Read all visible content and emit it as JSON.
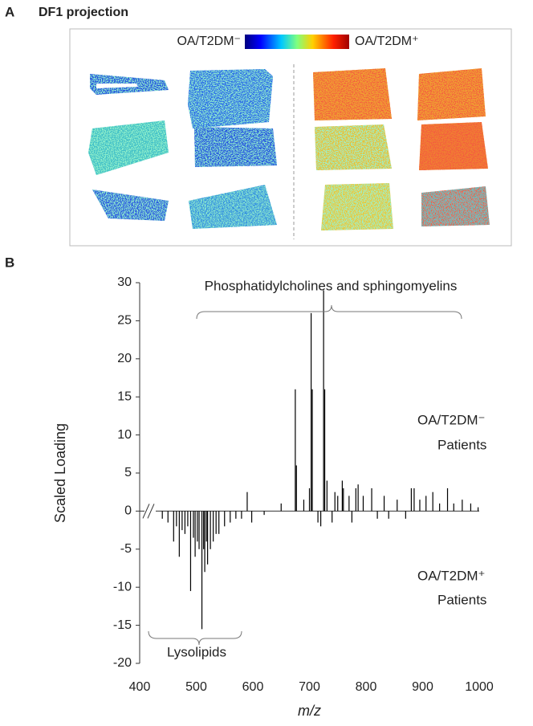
{
  "panel_a": {
    "label": "A",
    "title": "DF1 projection",
    "colorbar_low": "OA/T2DM⁻",
    "colorbar_high": "OA/T2DM⁺"
  },
  "chart_data": {
    "type": "spectrum",
    "panel_label": "B",
    "xlabel": "m/z",
    "ylabel": "Scaled Loading",
    "color": "#000000",
    "annotations": [
      "Phosphatidylcholines and sphingomyelins",
      "OA/T2DM⁻",
      "Patients",
      "OA/T2DM⁺",
      "Patients",
      "Lysolipids"
    ],
    "x": [
      440,
      450,
      460,
      465,
      470,
      475,
      480,
      485,
      490,
      495,
      498,
      502,
      505,
      510,
      513,
      515,
      518,
      520,
      525,
      530,
      535,
      540,
      550,
      560,
      570,
      580,
      590,
      598,
      620,
      650,
      675,
      677,
      690,
      700,
      703,
      705,
      715,
      720,
      725,
      727,
      731,
      740,
      745,
      750,
      758,
      760,
      770,
      775,
      782,
      786,
      795,
      810,
      820,
      832,
      840,
      855,
      870,
      880,
      885,
      895,
      906,
      918,
      930,
      944,
      955,
      970,
      985,
      998
    ],
    "values": [
      -1,
      -1.5,
      -4,
      -2,
      -6,
      -2.5,
      -3,
      -2,
      -10.5,
      -3.5,
      -6,
      -4,
      -5,
      -15.5,
      -5,
      -8,
      -4,
      -7,
      -5,
      -4,
      -3,
      -3,
      -2,
      -1.5,
      -1,
      -1,
      2.5,
      -1.5,
      -0.5,
      1,
      16,
      6,
      1.5,
      3,
      26,
      16,
      -1.5,
      -2,
      29,
      16,
      4,
      -1.5,
      2.5,
      2,
      4,
      3,
      2,
      -1.5,
      3,
      3.5,
      2,
      3,
      -1,
      2,
      -1,
      1.5,
      -1,
      3,
      3,
      1.5,
      2,
      2.5,
      1,
      3,
      1,
      1.5,
      1,
      0.5
    ],
    "xlim": [
      400,
      1000
    ],
    "xticks": [
      400,
      500,
      600,
      700,
      800,
      900,
      1000
    ],
    "ylim": [
      -20,
      30
    ],
    "yticks": [
      -20,
      -15,
      -10,
      -5,
      0,
      5,
      10,
      15,
      20,
      25,
      30
    ]
  }
}
